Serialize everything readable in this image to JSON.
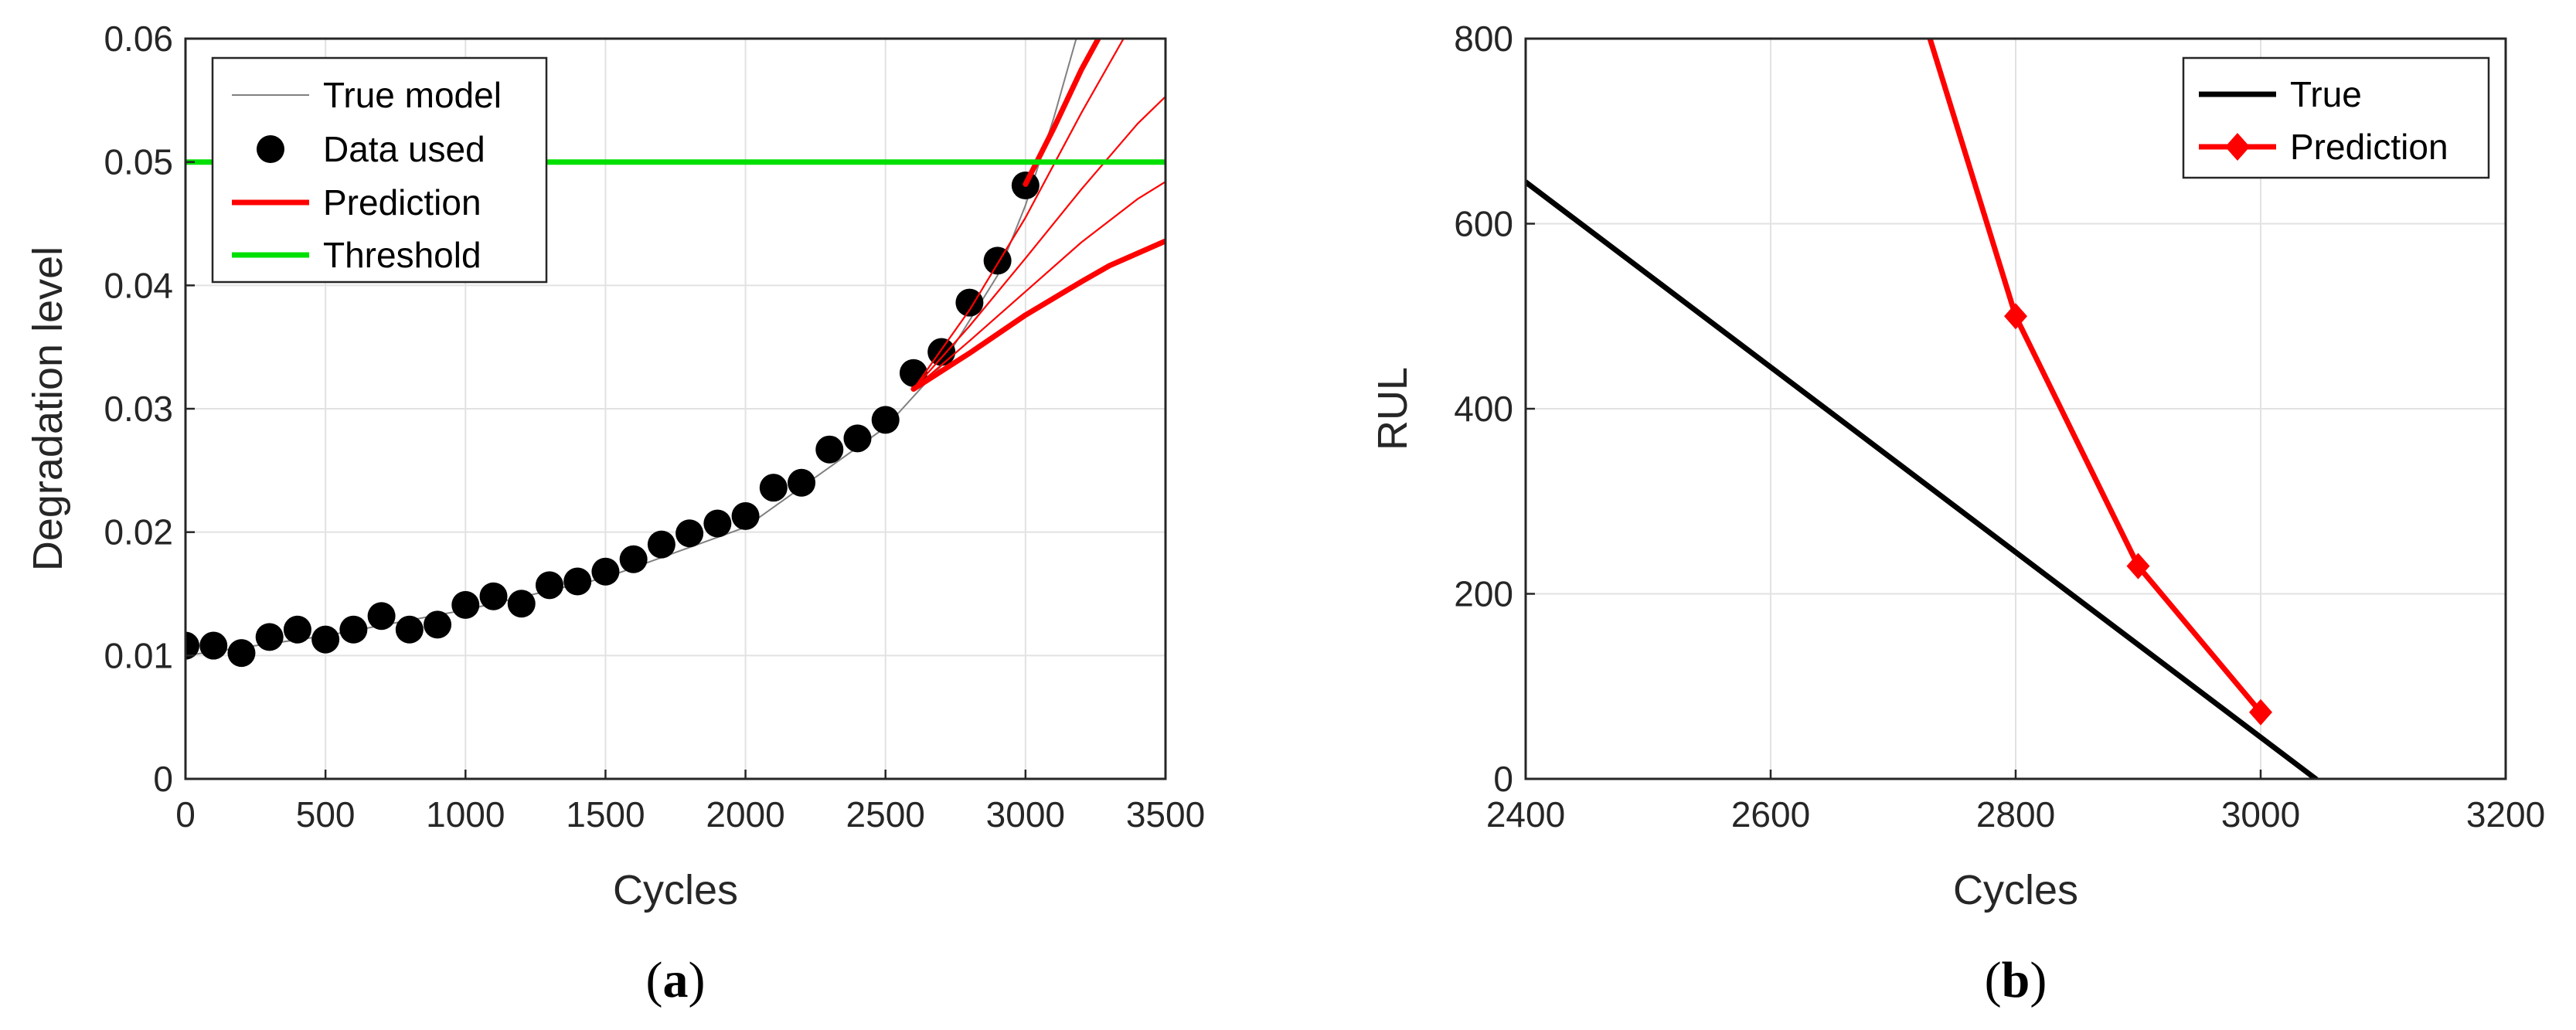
{
  "chart_data": [
    {
      "type": "line",
      "panel": "a",
      "caption_letter": "a",
      "xlabel": "Cycles",
      "ylabel": "Degradation level",
      "xlim": [
        0,
        3500
      ],
      "ylim": [
        0,
        0.06
      ],
      "xticks": [
        0,
        500,
        1000,
        1500,
        2000,
        2500,
        3000,
        3500
      ],
      "xtick_labels": [
        "0",
        "500",
        "1000",
        "1500",
        "2000",
        "2500",
        "3000",
        "3500"
      ],
      "yticks": [
        0,
        0.01,
        0.02,
        0.03,
        0.04,
        0.05,
        0.06
      ],
      "ytick_labels": [
        "0",
        "0.01",
        "0.02",
        "0.03",
        "0.04",
        "0.05",
        "0.06"
      ],
      "grid": true,
      "legend_position": "top-left",
      "legend": [
        "True model",
        "Data used",
        "Prediction",
        "Threshold"
      ],
      "colors": {
        "true_model": "#808080",
        "data": "#000000",
        "prediction": "#ff0000",
        "threshold": "#00e000"
      },
      "series": [
        {
          "name": "True model",
          "style": "thin-line",
          "x": [
            0,
            500,
            1000,
            1500,
            2000,
            2500,
            2700,
            2900,
            3000,
            3100,
            3150,
            3200
          ],
          "y": [
            0.01,
            0.0116,
            0.0137,
            0.0163,
            0.0204,
            0.0285,
            0.0335,
            0.0408,
            0.0465,
            0.0535,
            0.0575,
            0.0615
          ]
        },
        {
          "name": "Data used",
          "style": "markers",
          "x": [
            0,
            100,
            200,
            300,
            400,
            500,
            600,
            700,
            800,
            900,
            1000,
            1100,
            1200,
            1300,
            1400,
            1500,
            1600,
            1700,
            1800,
            1900,
            2000,
            2100,
            2200,
            2300,
            2400,
            2500,
            2600,
            2700,
            2800,
            2900,
            3000
          ],
          "y": [
            0.0108,
            0.0108,
            0.0102,
            0.0115,
            0.0121,
            0.0113,
            0.0121,
            0.0132,
            0.0121,
            0.0125,
            0.0141,
            0.0148,
            0.0142,
            0.0157,
            0.016,
            0.0168,
            0.0178,
            0.019,
            0.0199,
            0.0207,
            0.0213,
            0.0236,
            0.024,
            0.0267,
            0.0276,
            0.0291,
            0.0329,
            0.0346,
            0.0386,
            0.042,
            0.0481
          ]
        },
        {
          "name": "Prediction",
          "style": "bold-line",
          "x": [
            2600,
            2800,
            3000,
            3200,
            3300,
            3500
          ],
          "y": [
            0.0316,
            0.0345,
            0.0376,
            0.0403,
            0.0416,
            0.0436
          ]
        },
        {
          "name": "Prediction",
          "style": "thin-line",
          "x": [
            2600,
            2800,
            3000,
            3200,
            3400,
            3500
          ],
          "y": [
            0.0316,
            0.0355,
            0.0395,
            0.0435,
            0.047,
            0.0484
          ]
        },
        {
          "name": "Prediction",
          "style": "thin-line",
          "x": [
            2600,
            2800,
            3000,
            3200,
            3400,
            3500
          ],
          "y": [
            0.0316,
            0.0367,
            0.0422,
            0.0478,
            0.0531,
            0.0553
          ]
        },
        {
          "name": "Prediction",
          "style": "thin-line",
          "x": [
            2600,
            2800,
            3000,
            3200,
            3350
          ],
          "y": [
            0.0316,
            0.038,
            0.0455,
            0.054,
            0.06
          ]
        },
        {
          "name": "Prediction",
          "style": "bold-line",
          "x": [
            3000,
            3100,
            3200,
            3260
          ],
          "y": [
            0.0482,
            0.0527,
            0.0575,
            0.06
          ]
        },
        {
          "name": "Threshold",
          "style": "bold-line",
          "x": [
            0,
            3500
          ],
          "y": [
            0.05,
            0.05
          ]
        }
      ]
    },
    {
      "type": "line",
      "panel": "b",
      "caption_letter": "b",
      "xlabel": "Cycles",
      "ylabel": "RUL",
      "xlim": [
        2400,
        3200
      ],
      "ylim": [
        0,
        800
      ],
      "xticks": [
        2400,
        2600,
        2800,
        3000,
        3200
      ],
      "xtick_labels": [
        "2400",
        "2600",
        "2800",
        "3000",
        "3200"
      ],
      "yticks": [
        0,
        200,
        400,
        600,
        800
      ],
      "ytick_labels": [
        "0",
        "200",
        "400",
        "600",
        "800"
      ],
      "grid": true,
      "legend_position": "top-right",
      "legend": [
        "True",
        "Prediction"
      ],
      "colors": {
        "true": "#000000",
        "prediction": "#ff0000"
      },
      "series": [
        {
          "name": "True",
          "style": "bold-line",
          "x": [
            2400,
            3045
          ],
          "y": [
            645,
            0
          ]
        },
        {
          "name": "Prediction",
          "style": "bold-line-diamond",
          "x": [
            2730,
            2800,
            2900,
            3000
          ],
          "y": [
            800,
            500,
            230,
            72
          ],
          "markers": [
            false,
            true,
            true,
            true
          ]
        }
      ]
    }
  ]
}
